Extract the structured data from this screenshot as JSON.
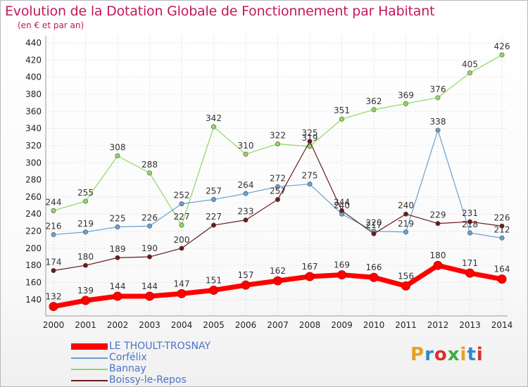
{
  "title": "Evolution de la Dotation Globale de Fonctionnement par Habitant",
  "subtitle": "(en € et par an)",
  "logo": {
    "text": "Proxiti",
    "colors": [
      "#e8a020",
      "#2a8ad0",
      "#d83030",
      "#3ab040",
      "#e8a020",
      "#2a8ad0",
      "#d83030"
    ]
  },
  "colors": {
    "title": "#c2185b",
    "grid": "#cccccc",
    "legend_text": "#4a73c8"
  },
  "chart_data": {
    "type": "line",
    "title": "Evolution de la Dotation Globale de Fonctionnement par Habitant",
    "subtitle": "(en € et par an)",
    "x": [
      "2000",
      "2001",
      "2002",
      "2003",
      "2004",
      "2005",
      "2006",
      "2007",
      "2008",
      "2009",
      "2010",
      "2011",
      "2012",
      "2013",
      "2014"
    ],
    "ylim": [
      130,
      440
    ],
    "yticks": [
      140,
      160,
      180,
      200,
      220,
      240,
      260,
      280,
      300,
      320,
      340,
      360,
      380,
      400,
      420,
      440
    ],
    "grid": true,
    "legend_position": "bottom-left",
    "series": [
      {
        "name": "LE THOULT-TROSNAY",
        "color": "#ff0000",
        "values": [
          132,
          139,
          144,
          144,
          147,
          151,
          157,
          162,
          167,
          169,
          166,
          156,
          180,
          171,
          164
        ]
      },
      {
        "name": "Corfélix",
        "color": "#6aa0d0",
        "values": [
          216,
          219,
          225,
          226,
          252,
          257,
          264,
          272,
          275,
          240,
          220,
          219,
          338,
          218,
          212
        ]
      },
      {
        "name": "Bannay",
        "color": "#8ed860",
        "values": [
          244,
          255,
          308,
          288,
          227,
          342,
          310,
          322,
          319,
          351,
          362,
          369,
          376,
          405,
          426
        ]
      },
      {
        "name": "Boissy-le-Repos",
        "color": "#6b1a1a",
        "values": [
          174,
          180,
          189,
          190,
          200,
          227,
          233,
          257,
          325,
          244,
          217,
          240,
          229,
          231,
          226
        ]
      }
    ]
  }
}
